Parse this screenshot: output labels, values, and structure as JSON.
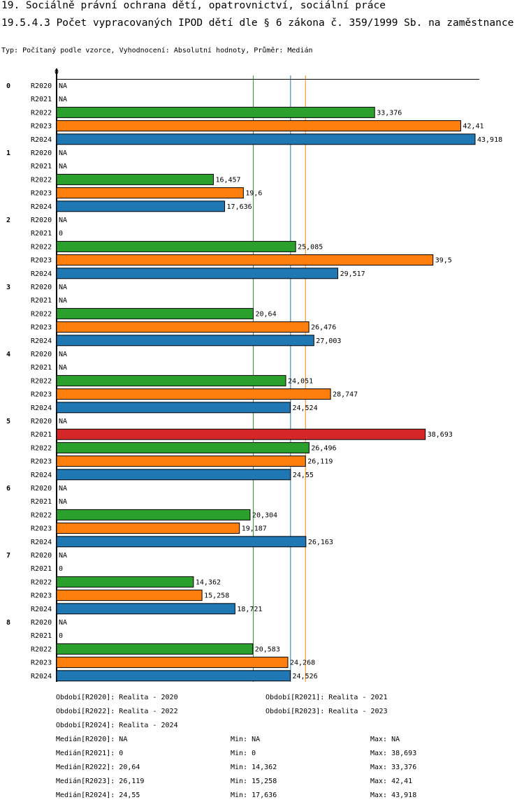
{
  "title": "19. Sociálně právní ochrana dětí, opatrovnictví, sociální práce",
  "subtitle": "19.5.4.3 Počet vypracovaných IPOD dětí dle § 6 zákona č. 359/1999 Sb. na zaměstnance",
  "info": "Typ: Počítaný podle vzorce, Vyhodnocení: Absolutní hodnoty, Průměr: Medián",
  "chart_data": {
    "type": "bar",
    "orientation": "horizontal",
    "xlim": [
      0,
      43.918
    ],
    "x_tick_labels": [
      "0"
    ],
    "categories": [
      "0",
      "1",
      "2",
      "3",
      "4",
      "5",
      "6",
      "7",
      "8"
    ],
    "series": [
      {
        "name": "R2020",
        "color": "#d62728",
        "values": [
          null,
          null,
          null,
          null,
          null,
          null,
          null,
          null,
          null
        ],
        "labels": [
          "NA",
          "NA",
          "NA",
          "NA",
          "NA",
          "NA",
          "NA",
          "NA",
          "NA"
        ]
      },
      {
        "name": "R2021",
        "color": "#d62728",
        "values": [
          null,
          null,
          0,
          null,
          null,
          38.693,
          null,
          0,
          0
        ],
        "labels": [
          "NA",
          "NA",
          "0",
          "NA",
          "NA",
          "38,693",
          "NA",
          "0",
          "0"
        ]
      },
      {
        "name": "R2022",
        "color": "#2ca02c",
        "values": [
          33.376,
          16.457,
          25.085,
          20.64,
          24.051,
          26.496,
          20.304,
          14.362,
          20.583
        ],
        "labels": [
          "33,376",
          "16,457",
          "25,085",
          "20,64",
          "24,051",
          "26,496",
          "20,304",
          "14,362",
          "20,583"
        ]
      },
      {
        "name": "R2023",
        "color": "#ff7f0e",
        "values": [
          42.41,
          19.6,
          39.5,
          26.476,
          28.747,
          26.119,
          19.187,
          15.258,
          24.268
        ],
        "labels": [
          "42,41",
          "19,6",
          "39,5",
          "26,476",
          "28,747",
          "26,119",
          "19,187",
          "15,258",
          "24,268"
        ]
      },
      {
        "name": "R2024",
        "color": "#1f77b4",
        "values": [
          43.918,
          17.636,
          29.517,
          27.003,
          24.524,
          24.55,
          26.163,
          18.721,
          24.526
        ],
        "labels": [
          "43,918",
          "17,636",
          "29,517",
          "27,003",
          "24,524",
          "24,55",
          "26,163",
          "18,721",
          "24,526"
        ]
      }
    ],
    "median_lines": [
      {
        "series": "R2021",
        "value": 0,
        "color": "#d62728"
      },
      {
        "series": "R2022",
        "value": 20.64,
        "color": "#2ca02c"
      },
      {
        "series": "R2024",
        "value": 24.55,
        "color": "#1f77b4"
      },
      {
        "series": "R2023",
        "value": 26.119,
        "color": "#ff7f0e"
      }
    ]
  },
  "legend": {
    "periods": [
      "Období[R2020]: Realita - 2020",
      "Období[R2021]: Realita - 2021",
      "Období[R2022]: Realita - 2022",
      "Období[R2023]: Realita - 2023",
      "Období[R2024]: Realita - 2024"
    ],
    "stats": [
      [
        "Medián[R2020]: NA",
        "Min: NA",
        "Max: NA"
      ],
      [
        "Medián[R2021]: 0",
        "Min: 0",
        "Max: 38,693"
      ],
      [
        "Medián[R2022]: 20,64",
        "Min: 14,362",
        "Max: 33,376"
      ],
      [
        "Medián[R2023]: 26,119",
        "Min: 15,258",
        "Max: 42,41"
      ],
      [
        "Medián[R2024]: 24,55",
        "Min: 17,636",
        "Max: 43,918"
      ]
    ]
  }
}
